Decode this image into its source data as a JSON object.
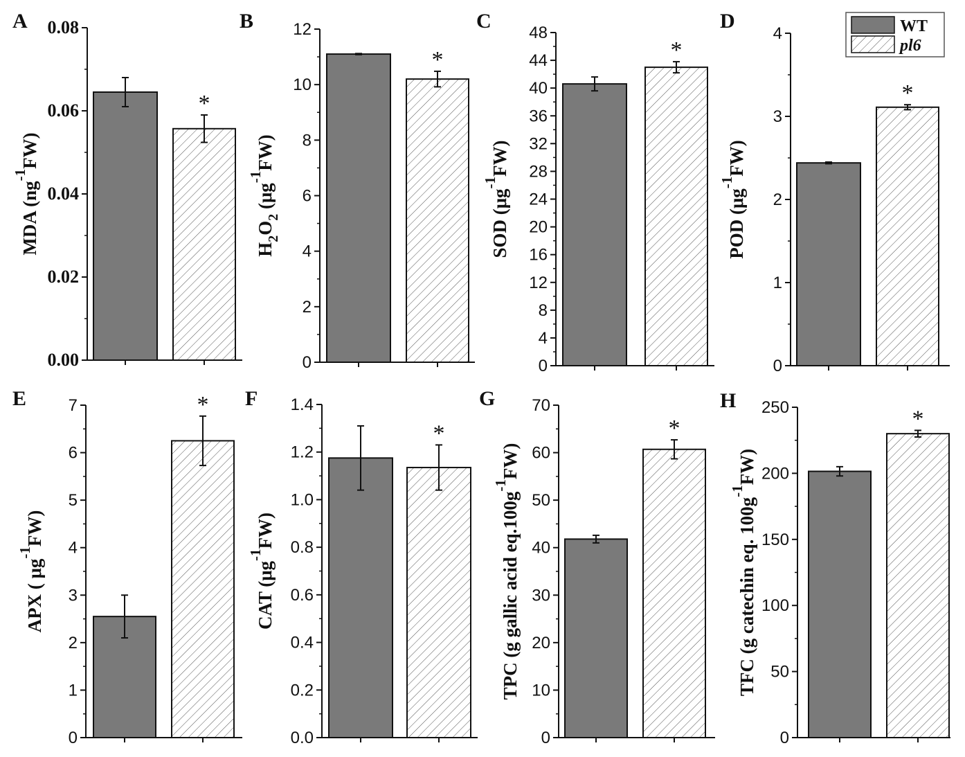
{
  "chart_data": [
    {
      "id": "A",
      "type": "bar",
      "panel_label": "A",
      "categories": [
        "WT",
        "pl6"
      ],
      "values": [
        0.0645,
        0.0557
      ],
      "errors": [
        0.0035,
        0.0033
      ],
      "significance": [
        "",
        "*"
      ],
      "ylim": [
        0,
        0.08
      ],
      "yticks": [
        "0.00",
        "0.02",
        "0.04",
        "0.06",
        "0.08"
      ],
      "ylabel": {
        "main": "MDA (ng",
        "sup": "-1",
        "tail": "FW)"
      }
    },
    {
      "id": "B",
      "type": "bar",
      "panel_label": "B",
      "categories": [
        "WT",
        "pl6"
      ],
      "values": [
        11.1,
        10.2
      ],
      "errors": [
        0.02,
        0.28
      ],
      "significance": [
        "",
        "*"
      ],
      "ylim": [
        0,
        12
      ],
      "yticks": [
        "0",
        "2",
        "4",
        "6",
        "8",
        "10",
        "12"
      ],
      "ylabel": {
        "main": "H",
        "sub1": "2",
        "mid": "O",
        "sub2": "2",
        "rest": " (μg",
        "sup": "-1",
        "tail": "FW)"
      }
    },
    {
      "id": "C",
      "type": "bar",
      "panel_label": "C",
      "categories": [
        "WT",
        "pl6"
      ],
      "values": [
        40.6,
        43.0
      ],
      "errors": [
        1.0,
        0.8
      ],
      "significance": [
        "",
        "*"
      ],
      "ylim": [
        0,
        48
      ],
      "yticks": [
        "0",
        "4",
        "8",
        "12",
        "16",
        "20",
        "24",
        "28",
        "32",
        "36",
        "40",
        "44",
        "48"
      ],
      "ylabel": {
        "main": "SOD (μg",
        "sup": "-1",
        "tail": "FW)"
      }
    },
    {
      "id": "D",
      "type": "bar",
      "panel_label": "D",
      "categories": [
        "WT",
        "pl6"
      ],
      "values": [
        2.44,
        3.11
      ],
      "errors": [
        0.01,
        0.03
      ],
      "significance": [
        "",
        "*"
      ],
      "ylim": [
        0,
        4
      ],
      "yticks": [
        "0",
        "1",
        "2",
        "3",
        "4"
      ],
      "ylabel": {
        "main": "POD (μg",
        "sup": "-1",
        "tail": "FW)"
      }
    },
    {
      "id": "E",
      "type": "bar",
      "panel_label": "E",
      "categories": [
        "WT",
        "pl6"
      ],
      "values": [
        2.55,
        6.25
      ],
      "errors": [
        0.45,
        0.52
      ],
      "significance": [
        "",
        "*"
      ],
      "ylim": [
        0,
        7
      ],
      "yticks": [
        "0",
        "1",
        "2",
        "3",
        "4",
        "5",
        "6",
        "7"
      ],
      "ylabel": {
        "main": "APX ( μg",
        "sup": "-1",
        "tail": "FW)"
      }
    },
    {
      "id": "F",
      "type": "bar",
      "panel_label": "F",
      "categories": [
        "WT",
        "pl6"
      ],
      "values": [
        1.175,
        1.135
      ],
      "errors": [
        0.135,
        0.095
      ],
      "significance": [
        "",
        "*"
      ],
      "ylim": [
        0,
        1.4
      ],
      "yticks": [
        "0.0",
        "0.2",
        "0.4",
        "0.6",
        "0.8",
        "1.0",
        "1.2",
        "1.4"
      ],
      "ylabel": {
        "main": "CAT (μg",
        "sup": "-1",
        "tail": "FW)"
      }
    },
    {
      "id": "G",
      "type": "bar",
      "panel_label": "G",
      "categories": [
        "WT",
        "pl6"
      ],
      "values": [
        41.8,
        60.7
      ],
      "errors": [
        0.8,
        2.0
      ],
      "significance": [
        "",
        "*"
      ],
      "ylim": [
        0,
        70
      ],
      "yticks": [
        "0",
        "10",
        "20",
        "30",
        "40",
        "50",
        "60",
        "70"
      ],
      "ylabel": {
        "main": "TPC (g gallic acid eq.100g",
        "sup": "-1",
        "tail": "FW)"
      }
    },
    {
      "id": "H",
      "type": "bar",
      "panel_label": "H",
      "categories": [
        "WT",
        "pl6"
      ],
      "values": [
        201.5,
        230.0
      ],
      "errors": [
        3.5,
        2.5
      ],
      "significance": [
        "",
        "*"
      ],
      "ylim": [
        0,
        250
      ],
      "yticks": [
        "0",
        "50",
        "100",
        "150",
        "200",
        "250"
      ],
      "ylabel": {
        "main": "TFC (g catechin eq. 100g",
        "sup": "-1",
        "tail": "FW)"
      }
    }
  ],
  "legend": {
    "entries": [
      {
        "label": "WT",
        "style": "solid"
      },
      {
        "label": "pl6",
        "style": "hatched"
      }
    ],
    "position": "top-right"
  },
  "colors": {
    "wt_fill": "#7a7a7a",
    "axis": "#111111",
    "hatch": "#555555"
  }
}
